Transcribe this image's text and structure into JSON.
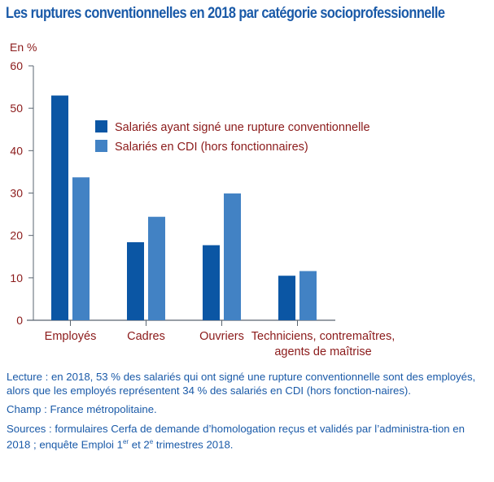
{
  "title": "Les ruptures conventionnelles en 2018 par catégorie socioprofessionnelle",
  "chart_data": {
    "type": "bar",
    "title": "Les ruptures conventionnelles en 2018 par catégorie socioprofessionnelle",
    "ylabel": "En %",
    "ylim": [
      0,
      60
    ],
    "yticks": [
      "0",
      "10",
      "20",
      "30",
      "40",
      "50",
      "60"
    ],
    "grid": false,
    "legend_placement": "top-center",
    "categories": [
      [
        "Employés"
      ],
      [
        "Cadres"
      ],
      [
        "Ouvriers"
      ],
      [
        "Techniciens, contremaîtres,",
        "agents de maîtrise"
      ]
    ],
    "series": [
      {
        "name": "Salariés ayant signé une rupture conventionnelle",
        "color": "#0b56a4",
        "values": [
          53,
          18.4,
          17.7,
          10.5
        ]
      },
      {
        "name": "Salariés en CDI (hors fonctionnaires)",
        "color": "#4282c4",
        "values": [
          33.7,
          24.4,
          29.9,
          11.6
        ]
      }
    ]
  },
  "notes": {
    "lecture": "Lecture : en 2018, 53 % des salariés qui ont signé une rupture conventionnelle sont des employés, alors que les employés représentent 34 % des salariés en CDI (hors fonction-naires).",
    "champ": "Champ : France métropolitaine.",
    "sources_a": "Sources : formulaires Cerfa de demande d’homologation reçus et validés par l’administra-tion en 2018 ; enquête Emploi 1",
    "sources_sup1": "er",
    "sources_b": " et 2",
    "sources_sup2": "e",
    "sources_c": " trimestres 2018."
  },
  "colors": {
    "title": "#1a5aa8",
    "labels": "#8b1a1a",
    "axis": "#5a6570"
  }
}
